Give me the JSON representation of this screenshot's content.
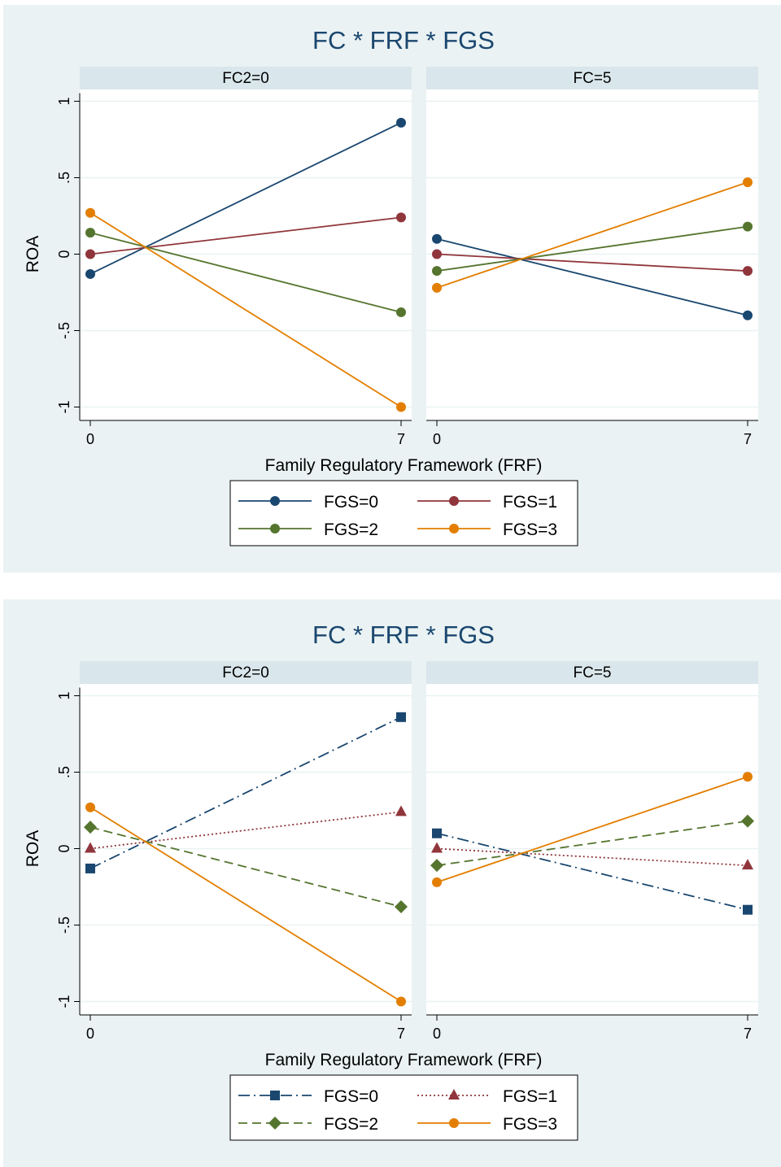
{
  "chart_data": [
    {
      "type": "line",
      "title": "FC * FRF * FGS",
      "xlabel": "Family Regulatory Framework (FRF)",
      "ylabel": "ROA",
      "x": [
        0,
        7
      ],
      "xticks": [
        "0",
        "7"
      ],
      "ylim": [
        -1.05,
        1.05
      ],
      "yticks": [
        1,
        0.5,
        0,
        -0.5,
        -1
      ],
      "ytick_labels": [
        "1",
        ".5",
        "0",
        "-.5",
        "-1"
      ],
      "grid": true,
      "legend_position": "bottom",
      "panels": [
        {
          "label": "FC2=0",
          "series": [
            {
              "name": "FGS=0",
              "values": [
                -0.13,
                0.86
              ]
            },
            {
              "name": "FGS=1",
              "values": [
                0.0,
                0.24
              ]
            },
            {
              "name": "FGS=2",
              "values": [
                0.14,
                -0.38
              ]
            },
            {
              "name": "FGS=3",
              "values": [
                0.27,
                -1.0
              ]
            }
          ]
        },
        {
          "label": "FC=5",
          "series": [
            {
              "name": "FGS=0",
              "values": [
                0.1,
                -0.4
              ]
            },
            {
              "name": "FGS=1",
              "values": [
                0.0,
                -0.11
              ]
            },
            {
              "name": "FGS=2",
              "values": [
                -0.11,
                0.18
              ]
            },
            {
              "name": "FGS=3",
              "values": [
                -0.22,
                0.47
              ]
            }
          ]
        }
      ],
      "series_styles": [
        {
          "color": "#1a476f",
          "marker": "circle",
          "dash": "solid"
        },
        {
          "color": "#90353b",
          "marker": "circle",
          "dash": "solid"
        },
        {
          "color": "#55752f",
          "marker": "circle",
          "dash": "solid"
        },
        {
          "color": "#e37e00",
          "marker": "circle",
          "dash": "solid"
        }
      ]
    },
    {
      "type": "line",
      "title": "FC * FRF * FGS",
      "xlabel": "Family Regulatory Framework (FRF)",
      "ylabel": "ROA",
      "x": [
        0,
        7
      ],
      "xticks": [
        "0",
        "7"
      ],
      "ylim": [
        -1.05,
        1.05
      ],
      "yticks": [
        1,
        0.5,
        0,
        -0.5,
        -1
      ],
      "ytick_labels": [
        "1",
        ".5",
        "0",
        "-.5",
        "-1"
      ],
      "grid": true,
      "legend_position": "bottom",
      "panels": [
        {
          "label": "FC2=0",
          "series": [
            {
              "name": "FGS=0",
              "values": [
                -0.13,
                0.86
              ]
            },
            {
              "name": "FGS=1",
              "values": [
                0.0,
                0.24
              ]
            },
            {
              "name": "FGS=2",
              "values": [
                0.14,
                -0.38
              ]
            },
            {
              "name": "FGS=3",
              "values": [
                0.27,
                -1.0
              ]
            }
          ]
        },
        {
          "label": "FC=5",
          "series": [
            {
              "name": "FGS=0",
              "values": [
                0.1,
                -0.4
              ]
            },
            {
              "name": "FGS=1",
              "values": [
                0.0,
                -0.11
              ]
            },
            {
              "name": "FGS=2",
              "values": [
                -0.11,
                0.18
              ]
            },
            {
              "name": "FGS=3",
              "values": [
                -0.22,
                0.47
              ]
            }
          ]
        }
      ],
      "series_styles": [
        {
          "color": "#1a476f",
          "marker": "square",
          "dash": "dashdot"
        },
        {
          "color": "#90353b",
          "marker": "triangle",
          "dash": "dotted"
        },
        {
          "color": "#55752f",
          "marker": "diamond",
          "dash": "dashed"
        },
        {
          "color": "#e37e00",
          "marker": "circle",
          "dash": "solid"
        }
      ]
    }
  ]
}
